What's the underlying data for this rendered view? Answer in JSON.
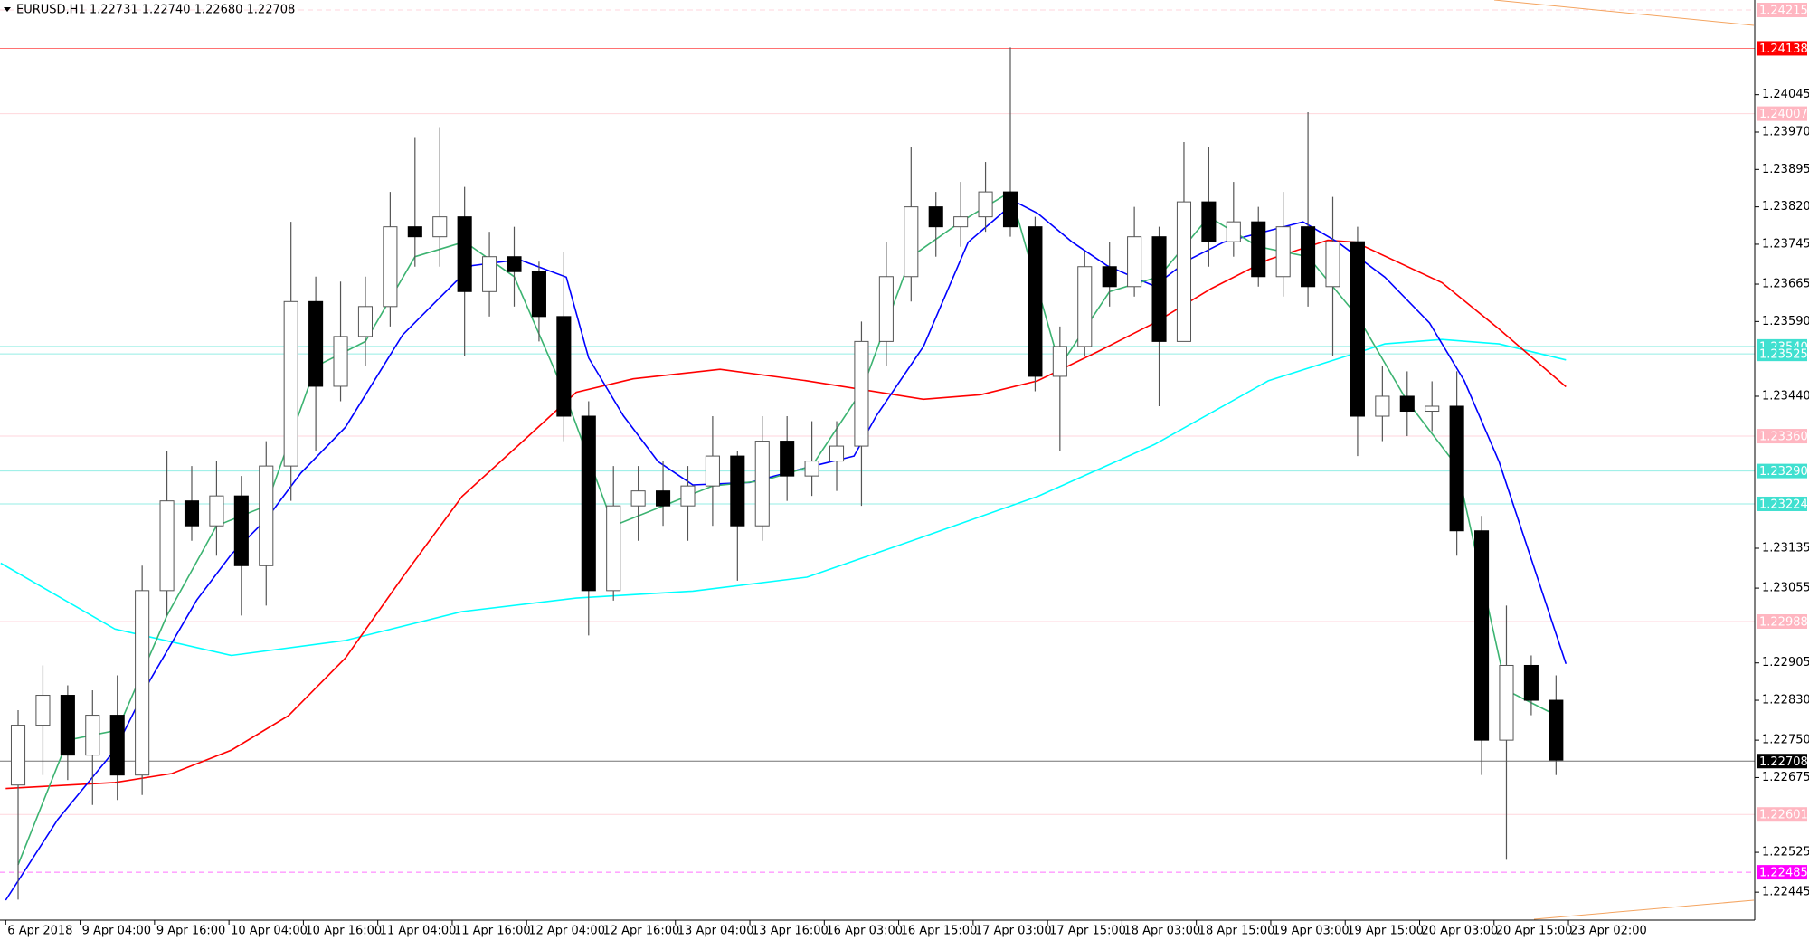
{
  "chart_data": {
    "type": "candlestick",
    "title": "EURUSD,H1  1.22731 1.22740 1.22680 1.22708",
    "xlim": [
      -0.23,
      70.51
    ],
    "ylim": [
      1.22389,
      1.24235
    ],
    "xticks": [
      {
        "value": 0,
        "label": "6 Apr 2018"
      },
      {
        "value": 3,
        "label": "9 Apr 04:00"
      },
      {
        "value": 6,
        "label": "9 Apr 16:00"
      },
      {
        "value": 9,
        "label": "10 Apr 04:00"
      },
      {
        "value": 12,
        "label": "10 Apr 16:00"
      },
      {
        "value": 15,
        "label": "11 Apr 04:00"
      },
      {
        "value": 18,
        "label": "11 Apr 16:00"
      },
      {
        "value": 21,
        "label": "12 Apr 04:00"
      },
      {
        "value": 24,
        "label": "12 Apr 16:00"
      },
      {
        "value": 27,
        "label": "13 Apr 04:00"
      },
      {
        "value": 30,
        "label": "13 Apr 16:00"
      },
      {
        "value": 33,
        "label": "16 Apr 03:00"
      },
      {
        "value": 36,
        "label": "16 Apr 15:00"
      },
      {
        "value": 39,
        "label": "17 Apr 03:00"
      },
      {
        "value": 42,
        "label": "17 Apr 15:00"
      },
      {
        "value": 45,
        "label": "18 Apr 03:00"
      },
      {
        "value": 48,
        "label": "18 Apr 15:00"
      },
      {
        "value": 51,
        "label": "19 Apr 03:00"
      },
      {
        "value": 54,
        "label": "19 Apr 15:00"
      },
      {
        "value": 57,
        "label": "20 Apr 03:00"
      },
      {
        "value": 60,
        "label": "20 Apr 15:00"
      },
      {
        "value": 63,
        "label": "23 Apr 02:00"
      }
    ],
    "yticks": [
      1.24045,
      {
        "value": 1.2397,
        "label": "1.23970"
      },
      1.23895,
      {
        "value": 1.2382,
        "label": "1.23820"
      },
      1.23745,
      1.23665,
      {
        "value": 1.2359,
        "label": "1.23590"
      },
      {
        "value": 1.2344,
        "label": "1.23440"
      },
      1.23135,
      1.23055,
      1.22905,
      {
        "value": 1.2283,
        "label": "1.22830"
      },
      {
        "value": 1.2275,
        "label": "1.22750"
      },
      1.22675,
      1.22525,
      1.22445
    ],
    "levels": [
      {
        "value": 1.24215,
        "color": "#ffb6c1",
        "dash": true
      },
      {
        "value": 1.24138,
        "color": "#ff0000"
      },
      {
        "value": 1.24007,
        "color": "#ffb6c1"
      },
      {
        "value": 1.2354,
        "label": "1.23540",
        "color": "#40e0d0"
      },
      {
        "value": 1.23525,
        "color": "#40e0d0"
      },
      {
        "value": 1.2336,
        "label": "1.23360",
        "color": "#ffb6c1"
      },
      {
        "value": 1.2329,
        "label": "1.23290",
        "color": "#40e0d0"
      },
      {
        "value": 1.23224,
        "color": "#40e0d0"
      },
      {
        "value": 1.22988,
        "color": "#ffb6c1"
      },
      {
        "value": 1.22708,
        "color": "#000000"
      },
      {
        "value": 1.22601,
        "color": "#ffb6c1"
      },
      {
        "value": 1.22485,
        "color": "#ff00ff",
        "dash": true
      }
    ],
    "candles": {
      "up_color": "#ffffff",
      "down_color": "#000000",
      "wick_color": "#555555",
      "open": [
        1.2266,
        1.2278,
        1.2284,
        1.2272,
        1.228,
        1.2268,
        1.2305,
        1.2323,
        1.2318,
        1.2324,
        1.231,
        1.233,
        1.2363,
        1.2346,
        1.2356,
        1.2362,
        1.2378,
        1.2376,
        1.238,
        1.2365,
        1.2372,
        1.2369,
        1.236,
        1.234,
        1.2305,
        1.2322,
        1.2325,
        1.2322,
        1.2326,
        1.2332,
        1.2318,
        1.2335,
        1.2328,
        1.2331,
        1.2334,
        1.2355,
        1.2368,
        1.2382,
        1.2378,
        1.238,
        1.2385,
        1.2378,
        1.2348,
        1.2354,
        1.237,
        1.2366,
        1.2376,
        1.2355,
        1.2383,
        1.2375,
        1.2379,
        1.2368,
        1.2378,
        1.2366,
        1.2375,
        1.234,
        1.2344,
        1.2341,
        1.2342,
        1.2317,
        1.2275,
        1.229,
        1.2283
      ],
      "high": [
        1.2281,
        1.229,
        1.2286,
        1.2285,
        1.2288,
        1.231,
        1.2333,
        1.233,
        1.2331,
        1.2328,
        1.2335,
        1.2379,
        1.2368,
        1.2367,
        1.2368,
        1.2385,
        1.2396,
        1.2398,
        1.2386,
        1.2377,
        1.2378,
        1.2371,
        1.2373,
        1.2343,
        1.233,
        1.233,
        1.2331,
        1.233,
        1.234,
        1.2333,
        1.234,
        1.234,
        1.2339,
        1.2339,
        1.2359,
        1.2375,
        1.2394,
        1.2385,
        1.2387,
        1.2391,
        1.2414,
        1.238,
        1.2358,
        1.2373,
        1.2375,
        1.2382,
        1.2378,
        1.2395,
        1.2394,
        1.2387,
        1.2382,
        1.2385,
        1.2401,
        1.2384,
        1.2378,
        1.235,
        1.2349,
        1.2347,
        1.2349,
        1.232,
        1.2302,
        1.2292,
        1.2288
      ],
      "low": [
        1.2243,
        1.2268,
        1.2267,
        1.2262,
        1.2263,
        1.2264,
        1.23,
        1.2315,
        1.2312,
        1.23,
        1.2302,
        1.2323,
        1.2333,
        1.2343,
        1.235,
        1.2358,
        1.237,
        1.237,
        1.2352,
        1.236,
        1.2362,
        1.2355,
        1.2335,
        1.2296,
        1.2303,
        1.2315,
        1.2318,
        1.2315,
        1.2318,
        1.2307,
        1.2315,
        1.2323,
        1.2324,
        1.2325,
        1.2322,
        1.235,
        1.2363,
        1.2372,
        1.2374,
        1.2377,
        1.2376,
        1.2345,
        1.2333,
        1.2352,
        1.2362,
        1.2364,
        1.2342,
        1.2355,
        1.237,
        1.2372,
        1.2366,
        1.2364,
        1.2362,
        1.2352,
        1.2332,
        1.2335,
        1.2336,
        1.2337,
        1.2312,
        1.2268,
        1.2251,
        1.228,
        1.2268
      ],
      "close": [
        1.2278,
        1.2284,
        1.2272,
        1.228,
        1.2268,
        1.2305,
        1.2323,
        1.2318,
        1.2324,
        1.231,
        1.233,
        1.2363,
        1.2346,
        1.2356,
        1.2362,
        1.2378,
        1.2376,
        1.238,
        1.2365,
        1.2372,
        1.2369,
        1.236,
        1.234,
        1.2305,
        1.2322,
        1.2325,
        1.2322,
        1.2326,
        1.2332,
        1.2318,
        1.2335,
        1.2328,
        1.2331,
        1.2334,
        1.2355,
        1.2368,
        1.2382,
        1.2378,
        1.238,
        1.2385,
        1.2378,
        1.2348,
        1.2354,
        1.237,
        1.2366,
        1.2376,
        1.2355,
        1.2383,
        1.2375,
        1.2379,
        1.2368,
        1.2378,
        1.2366,
        1.2375,
        1.234,
        1.2344,
        1.2341,
        1.2342,
        1.2317,
        1.2275,
        1.229,
        1.2283,
        1.2271
      ]
    },
    "lines": [
      {
        "color": "#00ffff",
        "x": [
          -0.2,
          4.4,
          9.1,
          13.7,
          18.4,
          23.0,
          27.7,
          32.3,
          37.0,
          41.6,
          46.3,
          50.9,
          55.6,
          57.9,
          60.2,
          62.9
        ],
        "values": [
          1.23105,
          1.22973,
          1.2292,
          1.2295,
          1.23008,
          1.23035,
          1.23049,
          1.23077,
          1.23158,
          1.23239,
          1.23343,
          1.23471,
          1.23545,
          1.23554,
          1.23545,
          1.23513
        ]
      },
      {
        "color": "#ff0000",
        "x": [
          0,
          4.4,
          6.7,
          9.1,
          11.4,
          13.7,
          16.0,
          18.4,
          20.7,
          23.0,
          25.3,
          28.8,
          32.3,
          37.0,
          39.3,
          41.6,
          44.0,
          46.3,
          48.6,
          50.9,
          53.3,
          54.4,
          57.9,
          60.2,
          62.9
        ],
        "values": [
          1.22653,
          1.22665,
          1.22683,
          1.2273,
          1.22799,
          1.22915,
          1.23077,
          1.23239,
          1.23343,
          1.23448,
          1.23475,
          1.23494,
          1.23471,
          1.23434,
          1.23443,
          1.23471,
          1.23529,
          1.23587,
          1.23656,
          1.23714,
          1.23753,
          1.23749,
          1.23668,
          1.23575,
          1.23459
        ]
      },
      {
        "color": "#0000ff",
        "x": [
          0,
          2.1,
          4.4,
          5.8,
          7.7,
          9.1,
          10.5,
          11.9,
          13.7,
          16.0,
          17.4,
          18.8,
          20.7,
          22.6,
          23.5,
          24.9,
          26.3,
          27.7,
          30.0,
          32.3,
          34.2,
          35.1,
          37.0,
          38.8,
          40.7,
          41.6,
          43.0,
          44.4,
          46.3,
          47.7,
          49.1,
          50.9,
          52.3,
          53.7,
          55.6,
          57.4,
          58.8,
          60.2,
          62.9
        ],
        "values": [
          1.22429,
          1.22591,
          1.2273,
          1.22869,
          1.23031,
          1.23123,
          1.23193,
          1.23286,
          1.23378,
          1.23563,
          1.23633,
          1.23702,
          1.23714,
          1.23679,
          1.23517,
          1.23401,
          1.23309,
          1.23262,
          1.23267,
          1.23297,
          1.2332,
          1.23401,
          1.2354,
          1.23749,
          1.2383,
          1.23807,
          1.23749,
          1.23702,
          1.23661,
          1.23714,
          1.23749,
          1.23772,
          1.2379,
          1.23749,
          1.23679,
          1.23587,
          1.23471,
          1.23309,
          1.22903
        ]
      },
      {
        "color": "#3cb371",
        "x": [
          0.5,
          2.5,
          4.5,
          6.5,
          8.5,
          10.5,
          12.5,
          14.5,
          16.5,
          18.5,
          20.5,
          22.5,
          24.5,
          26.5,
          28.5,
          30.5,
          32.5,
          34.5,
          36.5,
          38.5,
          40.5,
          42.5,
          44.5,
          46.5,
          48.5,
          50.5,
          52.5,
          54.5,
          56.5,
          58.5,
          60.5,
          62.5
        ],
        "values": [
          1.225,
          1.2275,
          1.2277,
          1.23,
          1.2318,
          1.2322,
          1.235,
          1.2355,
          1.2372,
          1.2375,
          1.2368,
          1.2345,
          1.2318,
          1.2322,
          1.2326,
          1.2327,
          1.233,
          1.2345,
          1.2372,
          1.2379,
          1.2385,
          1.235,
          1.2365,
          1.2368,
          1.238,
          1.2374,
          1.2372,
          1.236,
          1.2343,
          1.233,
          1.2285,
          1.228
        ]
      }
    ]
  }
}
